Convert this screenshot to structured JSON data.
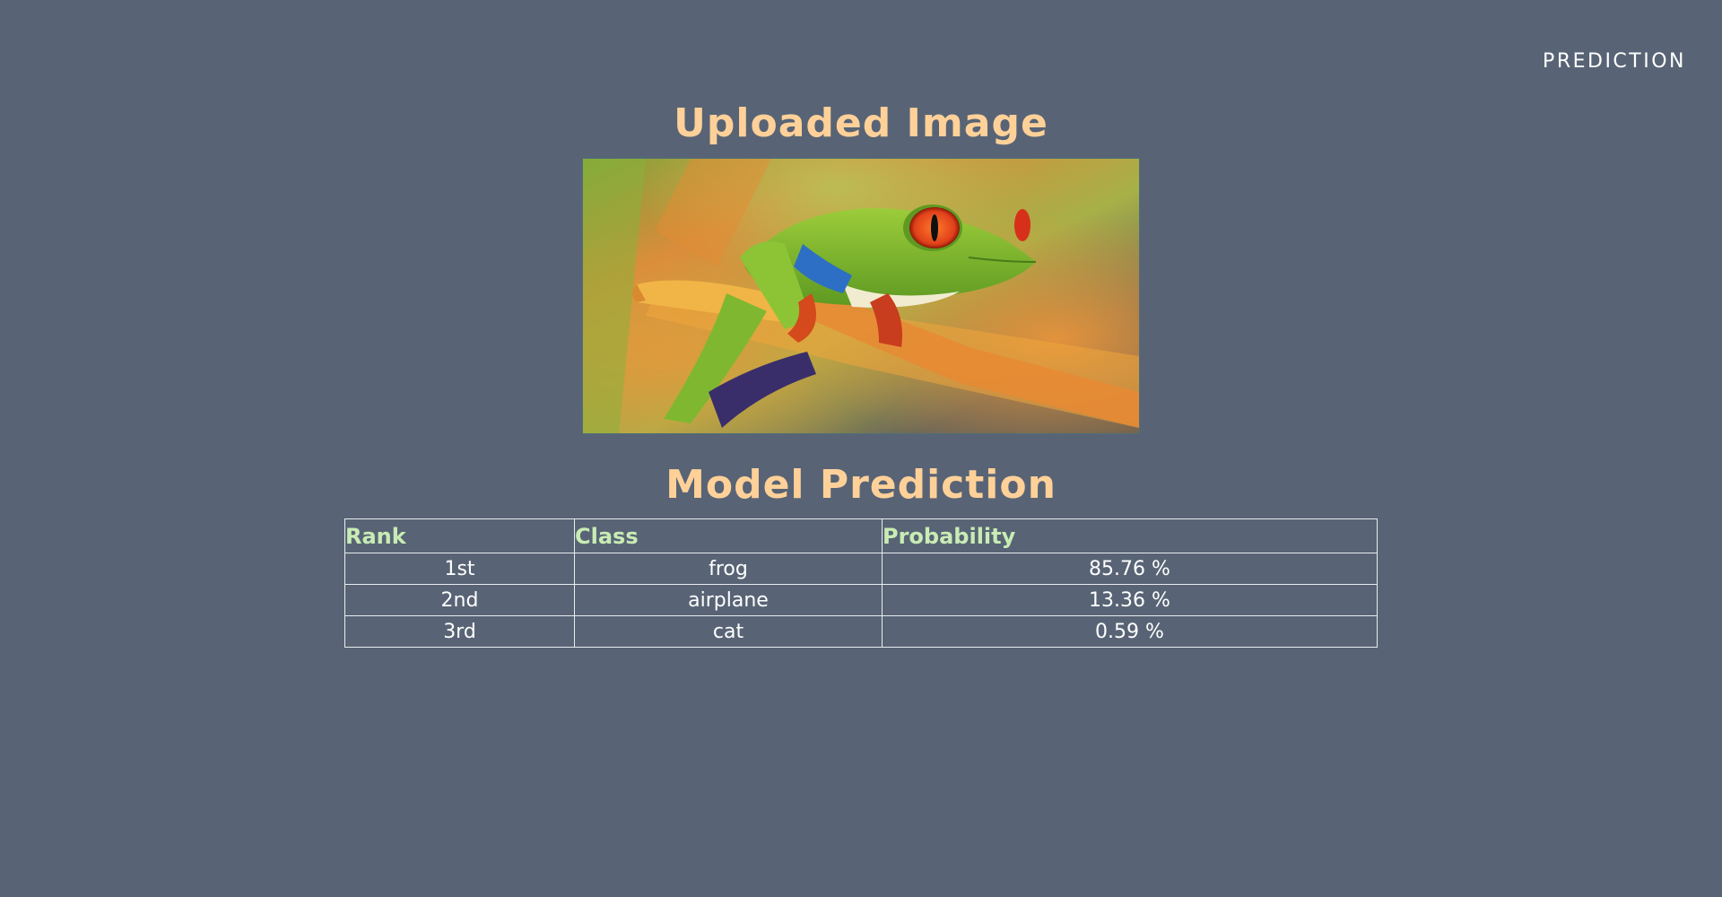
{
  "nav": {
    "prediction_label": "PREDICTION"
  },
  "upload_section": {
    "title": "Uploaded Image",
    "image_subject": "red-eyed tree frog photo"
  },
  "prediction_section": {
    "title": "Model Prediction",
    "table": {
      "headers": [
        "Rank",
        "Class",
        "Probability"
      ],
      "rows": [
        {
          "rank": "1st",
          "class": "frog",
          "probability": "85.76 %"
        },
        {
          "rank": "2nd",
          "class": "airplane",
          "probability": "13.36 %"
        },
        {
          "rank": "3rd",
          "class": "cat",
          "probability": "0.59 %"
        }
      ]
    }
  },
  "colors": {
    "background": "#586475",
    "heading": "#ffd199",
    "table_header": "#c8ecb4",
    "table_border": "#e8ecf0"
  }
}
